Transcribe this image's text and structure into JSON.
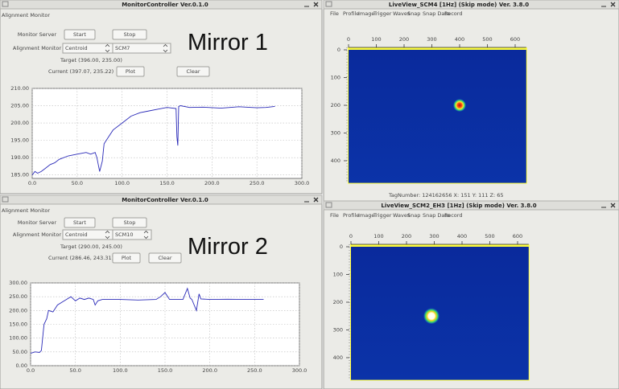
{
  "mirror_labels": [
    "Mirror 1",
    "Mirror 2"
  ],
  "monitors": [
    {
      "title": "MonitorController Ver.0.1.0",
      "section": "Alignment Monitor",
      "server_label": "Monitor Server",
      "start_button": "Start",
      "stop_button": "Stop",
      "align_label": "Alignment Monitor",
      "mode": "Centroid",
      "target_select": "SCM7",
      "target": "Target (396.00, 235.00)",
      "current": "Current (397.07, 235.22)",
      "plot_button": "Plot",
      "clear_button": "Clear",
      "chart": {
        "type": "line",
        "color": "#2a2ab8",
        "grid": true,
        "x": [
          0,
          3,
          6,
          10,
          15,
          20,
          25,
          30,
          40,
          50,
          60,
          65,
          70,
          72,
          75,
          78,
          80,
          85,
          90,
          100,
          110,
          120,
          130,
          140,
          150,
          160,
          161,
          162,
          163,
          165,
          175,
          190,
          210,
          230,
          250,
          260,
          270
        ],
        "values": [
          185,
          186,
          185.5,
          186,
          187,
          188,
          188.5,
          189.5,
          190.5,
          191,
          191.5,
          191,
          191.5,
          190,
          186,
          189,
          194,
          196,
          198,
          200,
          202,
          203,
          203.5,
          204,
          204.5,
          204.2,
          196,
          193.5,
          204.8,
          205,
          204.5,
          204.6,
          204.3,
          204.7,
          204.4,
          204.5,
          204.8
        ],
        "xlim": [
          0,
          300
        ],
        "ylim": [
          184,
          210
        ],
        "xticks": [
          {
            "value": 0,
            "label": "0.0"
          },
          {
            "value": 50,
            "label": "50.0"
          },
          {
            "value": 100,
            "label": "100.0"
          },
          {
            "value": 150,
            "label": "150.0"
          },
          {
            "value": 200,
            "label": "200.0"
          },
          {
            "value": 250,
            "label": "250.0"
          },
          {
            "value": 300,
            "label": "300.0"
          }
        ],
        "yticks": [
          {
            "value": 185,
            "label": "185.00"
          },
          {
            "value": 190,
            "label": "190.00"
          },
          {
            "value": 195,
            "label": "195.00"
          },
          {
            "value": 200,
            "label": "200.00"
          },
          {
            "value": 205,
            "label": "205.00"
          },
          {
            "value": 210,
            "label": "210.00"
          }
        ]
      }
    },
    {
      "title": "MonitorController Ver.0.1.0",
      "section": "Alignment Monitor",
      "server_label": "Monitor Server",
      "start_button": "Start",
      "stop_button": "Stop",
      "align_label": "Alignment Monitor",
      "mode": "Centroid",
      "target_select": "SCM10",
      "target": "Target (290.00, 245.00)",
      "current": "Current (286.46, 243.31)",
      "plot_button": "Plot",
      "clear_button": "Clear",
      "chart": {
        "type": "line",
        "color": "#2a2ab8",
        "grid": true,
        "x": [
          0,
          5,
          10,
          12,
          15,
          18,
          20,
          25,
          30,
          35,
          40,
          45,
          50,
          55,
          60,
          65,
          70,
          72,
          75,
          80,
          100,
          120,
          140,
          145,
          150,
          155,
          170,
          175,
          178,
          180,
          185,
          188,
          190,
          200,
          220,
          240,
          260
        ],
        "values": [
          45,
          50,
          48,
          55,
          150,
          170,
          200,
          195,
          220,
          230,
          240,
          250,
          235,
          245,
          240,
          245,
          240,
          220,
          235,
          240,
          240,
          238,
          240,
          250,
          265,
          240,
          240,
          280,
          245,
          240,
          200,
          260,
          242,
          240,
          241,
          240,
          240
        ],
        "xlim": [
          0,
          300
        ],
        "ylim": [
          0,
          300
        ],
        "xticks": [
          {
            "value": 0,
            "label": "0.0"
          },
          {
            "value": 50,
            "label": "50.0"
          },
          {
            "value": 100,
            "label": "100.0"
          },
          {
            "value": 150,
            "label": "150.0"
          },
          {
            "value": 200,
            "label": "200.0"
          },
          {
            "value": 250,
            "label": "250.0"
          },
          {
            "value": 300,
            "label": "300.0"
          }
        ],
        "yticks": [
          {
            "value": 0,
            "label": "0.00"
          },
          {
            "value": 50,
            "label": "50.00"
          },
          {
            "value": 100,
            "label": "100.00"
          },
          {
            "value": 150,
            "label": "150.00"
          },
          {
            "value": 200,
            "label": "200.00"
          },
          {
            "value": 250,
            "label": "250.00"
          },
          {
            "value": 300,
            "label": "300.00"
          }
        ]
      }
    }
  ],
  "liveviews": [
    {
      "title": "LiveView_SCM4 [1Hz] (Skip mode) Ver. 3.8.0",
      "menu": [
        "File",
        "Profile",
        "Image",
        "Trigger",
        "Waves",
        "Snap",
        "Snap Data",
        "Record"
      ],
      "image": {
        "xlim": [
          0,
          640
        ],
        "ylim": [
          0,
          480
        ],
        "xticks": [
          0,
          100,
          200,
          300,
          400,
          500,
          600
        ],
        "yticks": [
          0,
          100,
          200,
          300,
          400
        ],
        "spot": {
          "x": 400,
          "y": 200
        }
      },
      "status": "TagNumber: 124162656  X: 151  Y: 111  Z: 65"
    },
    {
      "title": "LiveView_SCM2_EH3 [1Hz] (Skip mode) Ver. 3.8.0",
      "menu": [
        "File",
        "Profile",
        "Image",
        "Trigger",
        "Waves",
        "Snap",
        "Snap Data",
        "Record"
      ],
      "image": {
        "xlim": [
          0,
          640
        ],
        "ylim": [
          0,
          480
        ],
        "xticks": [
          0,
          100,
          200,
          300,
          400,
          500,
          600
        ],
        "yticks": [
          0,
          100,
          200,
          300,
          400
        ],
        "spot": {
          "x": 290,
          "y": 250
        }
      }
    }
  ]
}
